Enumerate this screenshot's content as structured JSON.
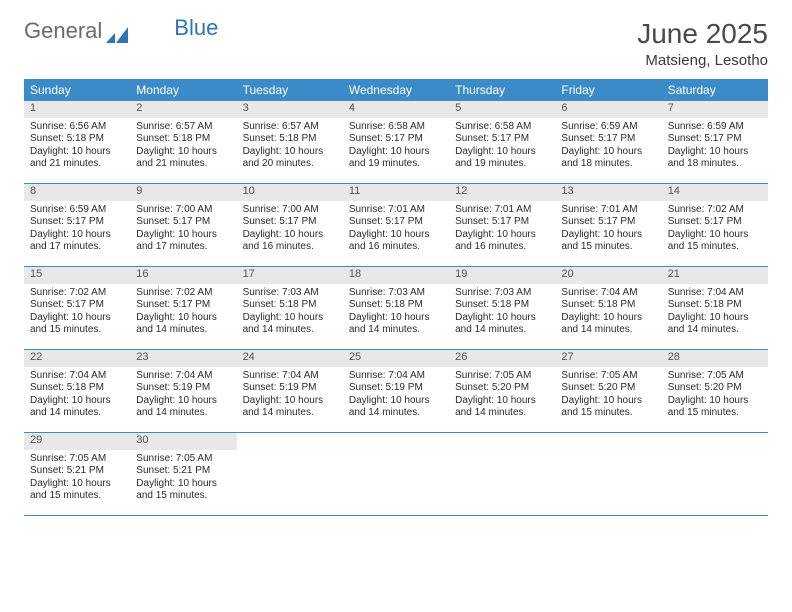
{
  "brand": {
    "part1": "General",
    "part2": "Blue"
  },
  "title": "June 2025",
  "location": "Matsieng, Lesotho",
  "colors": {
    "header_bg": "#3b8bc8",
    "header_text": "#ffffff",
    "daynum_bg": "#e8e8e8",
    "border": "#3b8bc8",
    "text": "#2b2b2b",
    "title_text": "#4a4a4a"
  },
  "weekdays": [
    "Sunday",
    "Monday",
    "Tuesday",
    "Wednesday",
    "Thursday",
    "Friday",
    "Saturday"
  ],
  "weeks": [
    [
      {
        "day": "1",
        "sunrise": "Sunrise: 6:56 AM",
        "sunset": "Sunset: 5:18 PM",
        "daylight1": "Daylight: 10 hours",
        "daylight2": "and 21 minutes."
      },
      {
        "day": "2",
        "sunrise": "Sunrise: 6:57 AM",
        "sunset": "Sunset: 5:18 PM",
        "daylight1": "Daylight: 10 hours",
        "daylight2": "and 21 minutes."
      },
      {
        "day": "3",
        "sunrise": "Sunrise: 6:57 AM",
        "sunset": "Sunset: 5:18 PM",
        "daylight1": "Daylight: 10 hours",
        "daylight2": "and 20 minutes."
      },
      {
        "day": "4",
        "sunrise": "Sunrise: 6:58 AM",
        "sunset": "Sunset: 5:17 PM",
        "daylight1": "Daylight: 10 hours",
        "daylight2": "and 19 minutes."
      },
      {
        "day": "5",
        "sunrise": "Sunrise: 6:58 AM",
        "sunset": "Sunset: 5:17 PM",
        "daylight1": "Daylight: 10 hours",
        "daylight2": "and 19 minutes."
      },
      {
        "day": "6",
        "sunrise": "Sunrise: 6:59 AM",
        "sunset": "Sunset: 5:17 PM",
        "daylight1": "Daylight: 10 hours",
        "daylight2": "and 18 minutes."
      },
      {
        "day": "7",
        "sunrise": "Sunrise: 6:59 AM",
        "sunset": "Sunset: 5:17 PM",
        "daylight1": "Daylight: 10 hours",
        "daylight2": "and 18 minutes."
      }
    ],
    [
      {
        "day": "8",
        "sunrise": "Sunrise: 6:59 AM",
        "sunset": "Sunset: 5:17 PM",
        "daylight1": "Daylight: 10 hours",
        "daylight2": "and 17 minutes."
      },
      {
        "day": "9",
        "sunrise": "Sunrise: 7:00 AM",
        "sunset": "Sunset: 5:17 PM",
        "daylight1": "Daylight: 10 hours",
        "daylight2": "and 17 minutes."
      },
      {
        "day": "10",
        "sunrise": "Sunrise: 7:00 AM",
        "sunset": "Sunset: 5:17 PM",
        "daylight1": "Daylight: 10 hours",
        "daylight2": "and 16 minutes."
      },
      {
        "day": "11",
        "sunrise": "Sunrise: 7:01 AM",
        "sunset": "Sunset: 5:17 PM",
        "daylight1": "Daylight: 10 hours",
        "daylight2": "and 16 minutes."
      },
      {
        "day": "12",
        "sunrise": "Sunrise: 7:01 AM",
        "sunset": "Sunset: 5:17 PM",
        "daylight1": "Daylight: 10 hours",
        "daylight2": "and 16 minutes."
      },
      {
        "day": "13",
        "sunrise": "Sunrise: 7:01 AM",
        "sunset": "Sunset: 5:17 PM",
        "daylight1": "Daylight: 10 hours",
        "daylight2": "and 15 minutes."
      },
      {
        "day": "14",
        "sunrise": "Sunrise: 7:02 AM",
        "sunset": "Sunset: 5:17 PM",
        "daylight1": "Daylight: 10 hours",
        "daylight2": "and 15 minutes."
      }
    ],
    [
      {
        "day": "15",
        "sunrise": "Sunrise: 7:02 AM",
        "sunset": "Sunset: 5:17 PM",
        "daylight1": "Daylight: 10 hours",
        "daylight2": "and 15 minutes."
      },
      {
        "day": "16",
        "sunrise": "Sunrise: 7:02 AM",
        "sunset": "Sunset: 5:17 PM",
        "daylight1": "Daylight: 10 hours",
        "daylight2": "and 14 minutes."
      },
      {
        "day": "17",
        "sunrise": "Sunrise: 7:03 AM",
        "sunset": "Sunset: 5:18 PM",
        "daylight1": "Daylight: 10 hours",
        "daylight2": "and 14 minutes."
      },
      {
        "day": "18",
        "sunrise": "Sunrise: 7:03 AM",
        "sunset": "Sunset: 5:18 PM",
        "daylight1": "Daylight: 10 hours",
        "daylight2": "and 14 minutes."
      },
      {
        "day": "19",
        "sunrise": "Sunrise: 7:03 AM",
        "sunset": "Sunset: 5:18 PM",
        "daylight1": "Daylight: 10 hours",
        "daylight2": "and 14 minutes."
      },
      {
        "day": "20",
        "sunrise": "Sunrise: 7:04 AM",
        "sunset": "Sunset: 5:18 PM",
        "daylight1": "Daylight: 10 hours",
        "daylight2": "and 14 minutes."
      },
      {
        "day": "21",
        "sunrise": "Sunrise: 7:04 AM",
        "sunset": "Sunset: 5:18 PM",
        "daylight1": "Daylight: 10 hours",
        "daylight2": "and 14 minutes."
      }
    ],
    [
      {
        "day": "22",
        "sunrise": "Sunrise: 7:04 AM",
        "sunset": "Sunset: 5:18 PM",
        "daylight1": "Daylight: 10 hours",
        "daylight2": "and 14 minutes."
      },
      {
        "day": "23",
        "sunrise": "Sunrise: 7:04 AM",
        "sunset": "Sunset: 5:19 PM",
        "daylight1": "Daylight: 10 hours",
        "daylight2": "and 14 minutes."
      },
      {
        "day": "24",
        "sunrise": "Sunrise: 7:04 AM",
        "sunset": "Sunset: 5:19 PM",
        "daylight1": "Daylight: 10 hours",
        "daylight2": "and 14 minutes."
      },
      {
        "day": "25",
        "sunrise": "Sunrise: 7:04 AM",
        "sunset": "Sunset: 5:19 PM",
        "daylight1": "Daylight: 10 hours",
        "daylight2": "and 14 minutes."
      },
      {
        "day": "26",
        "sunrise": "Sunrise: 7:05 AM",
        "sunset": "Sunset: 5:20 PM",
        "daylight1": "Daylight: 10 hours",
        "daylight2": "and 14 minutes."
      },
      {
        "day": "27",
        "sunrise": "Sunrise: 7:05 AM",
        "sunset": "Sunset: 5:20 PM",
        "daylight1": "Daylight: 10 hours",
        "daylight2": "and 15 minutes."
      },
      {
        "day": "28",
        "sunrise": "Sunrise: 7:05 AM",
        "sunset": "Sunset: 5:20 PM",
        "daylight1": "Daylight: 10 hours",
        "daylight2": "and 15 minutes."
      }
    ],
    [
      {
        "day": "29",
        "sunrise": "Sunrise: 7:05 AM",
        "sunset": "Sunset: 5:21 PM",
        "daylight1": "Daylight: 10 hours",
        "daylight2": "and 15 minutes."
      },
      {
        "day": "30",
        "sunrise": "Sunrise: 7:05 AM",
        "sunset": "Sunset: 5:21 PM",
        "daylight1": "Daylight: 10 hours",
        "daylight2": "and 15 minutes."
      },
      null,
      null,
      null,
      null,
      null
    ]
  ]
}
